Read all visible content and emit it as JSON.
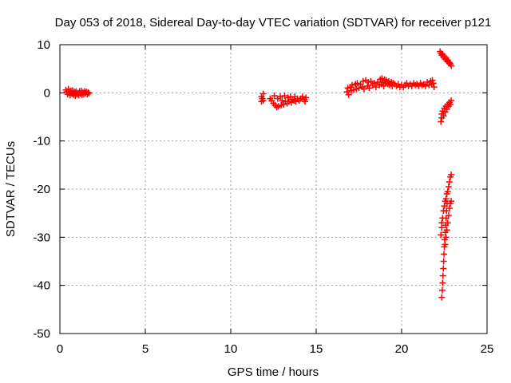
{
  "chart_data": {
    "type": "scatter",
    "title": "Day 053 of 2018, Sidereal Day-to-day VTEC variation (SDTVAR) for receiver p121",
    "xlabel": "GPS time / hours",
    "ylabel": "SDTVAR / TECUs",
    "xlim": [
      0,
      25
    ],
    "ylim": [
      -50,
      10
    ],
    "xticks": [
      0,
      5,
      10,
      15,
      20,
      25
    ],
    "yticks": [
      -50,
      -40,
      -30,
      -20,
      -10,
      0,
      10
    ],
    "grid": true,
    "marker": "+",
    "color": "#ff0000",
    "series": [
      {
        "values": [
          [
            0.35,
            0.6
          ],
          [
            0.4,
            0.2
          ],
          [
            0.45,
            -0.3
          ],
          [
            0.5,
            0.8
          ],
          [
            0.55,
            0.1
          ],
          [
            0.6,
            -0.5
          ],
          [
            0.65,
            0.4
          ],
          [
            0.7,
            -0.2
          ],
          [
            0.75,
            0.5
          ],
          [
            0.8,
            -0.4
          ],
          [
            0.85,
            0.2
          ],
          [
            0.9,
            -0.6
          ],
          [
            0.95,
            0.3
          ],
          [
            1.0,
            -0.3
          ],
          [
            1.05,
            0.0
          ],
          [
            1.1,
            -0.5
          ],
          [
            1.15,
            0.3
          ],
          [
            1.2,
            -0.2
          ],
          [
            1.25,
            0.4
          ],
          [
            1.3,
            -0.4
          ],
          [
            1.35,
            0.1
          ],
          [
            1.4,
            -0.3
          ],
          [
            1.45,
            0.3
          ],
          [
            1.5,
            -0.1
          ],
          [
            1.55,
            0.2
          ],
          [
            1.6,
            -0.3
          ],
          [
            1.65,
            0.1
          ],
          [
            1.7,
            -0.1
          ],
          [
            11.8,
            -0.8
          ],
          [
            11.8,
            -1.8
          ],
          [
            11.85,
            -1.2
          ],
          [
            11.9,
            -0.2
          ],
          [
            11.9,
            -1.6
          ],
          [
            12.3,
            -1.2
          ],
          [
            12.4,
            -1.6
          ],
          [
            12.5,
            -2.2
          ],
          [
            12.55,
            -0.6
          ],
          [
            12.6,
            -2.6
          ],
          [
            12.7,
            -3.0
          ],
          [
            12.75,
            -1.2
          ],
          [
            12.8,
            -2.8
          ],
          [
            12.9,
            -0.8
          ],
          [
            12.95,
            -2.6
          ],
          [
            13.0,
            -1.6
          ],
          [
            13.1,
            -2.4
          ],
          [
            13.15,
            -0.6
          ],
          [
            13.2,
            -1.8
          ],
          [
            13.3,
            -2.2
          ],
          [
            13.35,
            -1.0
          ],
          [
            13.4,
            -1.8
          ],
          [
            13.5,
            -0.8
          ],
          [
            13.55,
            -2.0
          ],
          [
            13.6,
            -1.4
          ],
          [
            13.7,
            -1.6
          ],
          [
            13.75,
            -0.8
          ],
          [
            13.8,
            -1.8
          ],
          [
            13.9,
            -1.2
          ],
          [
            14.0,
            -1.6
          ],
          [
            14.1,
            -1.2
          ],
          [
            14.2,
            -0.8
          ],
          [
            14.3,
            -1.4
          ],
          [
            14.35,
            -1.8
          ],
          [
            14.4,
            -1.0
          ],
          [
            16.8,
            0.2
          ],
          [
            16.85,
            1.0
          ],
          [
            16.9,
            -0.4
          ],
          [
            17.0,
            1.2
          ],
          [
            17.05,
            0.4
          ],
          [
            17.1,
            1.6
          ],
          [
            17.2,
            0.6
          ],
          [
            17.3,
            1.8
          ],
          [
            17.35,
            0.8
          ],
          [
            17.4,
            2.0
          ],
          [
            17.5,
            1.0
          ],
          [
            17.6,
            1.8
          ],
          [
            17.7,
            1.2
          ],
          [
            17.75,
            2.4
          ],
          [
            17.8,
            0.8
          ],
          [
            17.9,
            2.6
          ],
          [
            18.0,
            1.4
          ],
          [
            18.05,
            2.2
          ],
          [
            18.1,
            1.0
          ],
          [
            18.2,
            2.4
          ],
          [
            18.3,
            1.6
          ],
          [
            18.4,
            2.0
          ],
          [
            18.5,
            1.2
          ],
          [
            18.6,
            2.2
          ],
          [
            18.7,
            1.6
          ],
          [
            18.75,
            2.8
          ],
          [
            18.8,
            1.8
          ],
          [
            18.85,
            3.0
          ],
          [
            18.9,
            2.2
          ],
          [
            18.95,
            1.4
          ],
          [
            19.0,
            2.8
          ],
          [
            19.05,
            2.0
          ],
          [
            19.1,
            2.6
          ],
          [
            19.2,
            1.8
          ],
          [
            19.25,
            2.4
          ],
          [
            19.3,
            1.6
          ],
          [
            19.4,
            2.2
          ],
          [
            19.45,
            1.4
          ],
          [
            19.5,
            2.0
          ],
          [
            19.6,
            1.8
          ],
          [
            19.7,
            1.4
          ],
          [
            19.8,
            1.8
          ],
          [
            19.9,
            1.2
          ],
          [
            20.0,
            1.6
          ],
          [
            20.1,
            1.2
          ],
          [
            20.2,
            1.6
          ],
          [
            20.3,
            2.0
          ],
          [
            20.4,
            1.4
          ],
          [
            20.5,
            1.8
          ],
          [
            20.6,
            1.4
          ],
          [
            20.7,
            2.0
          ],
          [
            20.8,
            1.6
          ],
          [
            20.9,
            1.8
          ],
          [
            21.0,
            1.4
          ],
          [
            21.1,
            2.0
          ],
          [
            21.2,
            1.6
          ],
          [
            21.3,
            1.8
          ],
          [
            21.4,
            1.4
          ],
          [
            21.5,
            2.2
          ],
          [
            21.6,
            1.6
          ],
          [
            21.7,
            2.4
          ],
          [
            21.75,
            1.8
          ],
          [
            21.8,
            2.6
          ],
          [
            21.85,
            2.0
          ],
          [
            21.9,
            1.2
          ],
          [
            22.25,
            8.6
          ],
          [
            22.3,
            8.2
          ],
          [
            22.35,
            7.8
          ],
          [
            22.4,
            8.0
          ],
          [
            22.45,
            7.4
          ],
          [
            22.5,
            7.6
          ],
          [
            22.55,
            7.0
          ],
          [
            22.6,
            7.2
          ],
          [
            22.65,
            6.6
          ],
          [
            22.7,
            6.8
          ],
          [
            22.75,
            6.4
          ],
          [
            22.8,
            6.2
          ],
          [
            22.85,
            6.0
          ],
          [
            22.9,
            5.6
          ],
          [
            22.3,
            -6.0
          ],
          [
            22.35,
            -5.2
          ],
          [
            22.35,
            -4.4
          ],
          [
            22.4,
            -3.8
          ],
          [
            22.45,
            -4.8
          ],
          [
            22.5,
            -3.2
          ],
          [
            22.55,
            -4.0
          ],
          [
            22.6,
            -2.8
          ],
          [
            22.65,
            -3.4
          ],
          [
            22.7,
            -2.4
          ],
          [
            22.75,
            -2.8
          ],
          [
            22.8,
            -2.0
          ],
          [
            22.85,
            -2.4
          ],
          [
            22.9,
            -1.6
          ],
          [
            22.3,
            -29.5
          ],
          [
            22.35,
            -28.0
          ],
          [
            22.35,
            -27.0
          ],
          [
            22.4,
            -26.0
          ],
          [
            22.45,
            -24.5
          ],
          [
            22.5,
            -23.5
          ],
          [
            22.55,
            -22.5
          ],
          [
            22.6,
            -22.0
          ],
          [
            22.65,
            -21.0
          ],
          [
            22.7,
            -20.5
          ],
          [
            22.75,
            -19.5
          ],
          [
            22.8,
            -18.5
          ],
          [
            22.85,
            -17.5
          ],
          [
            22.9,
            -17.0
          ],
          [
            22.35,
            -42.5
          ],
          [
            22.38,
            -41.0
          ],
          [
            22.4,
            -39.5
          ],
          [
            22.42,
            -38.0
          ],
          [
            22.44,
            -36.5
          ],
          [
            22.46,
            -35.0
          ],
          [
            22.48,
            -33.5
          ],
          [
            22.5,
            -32.0
          ],
          [
            22.52,
            -30.5
          ],
          [
            22.55,
            -29.0
          ],
          [
            22.58,
            -27.5
          ],
          [
            22.6,
            -26.0
          ],
          [
            22.63,
            -24.5
          ],
          [
            22.66,
            -23.0
          ],
          [
            22.7,
            -27.0
          ],
          [
            22.75,
            -25.5
          ],
          [
            22.8,
            -24.0
          ],
          [
            22.85,
            -23.0
          ],
          [
            22.9,
            -22.5
          ],
          [
            22.55,
            -31.5
          ],
          [
            22.6,
            -30.0
          ],
          [
            22.65,
            -28.5
          ]
        ]
      }
    ]
  }
}
